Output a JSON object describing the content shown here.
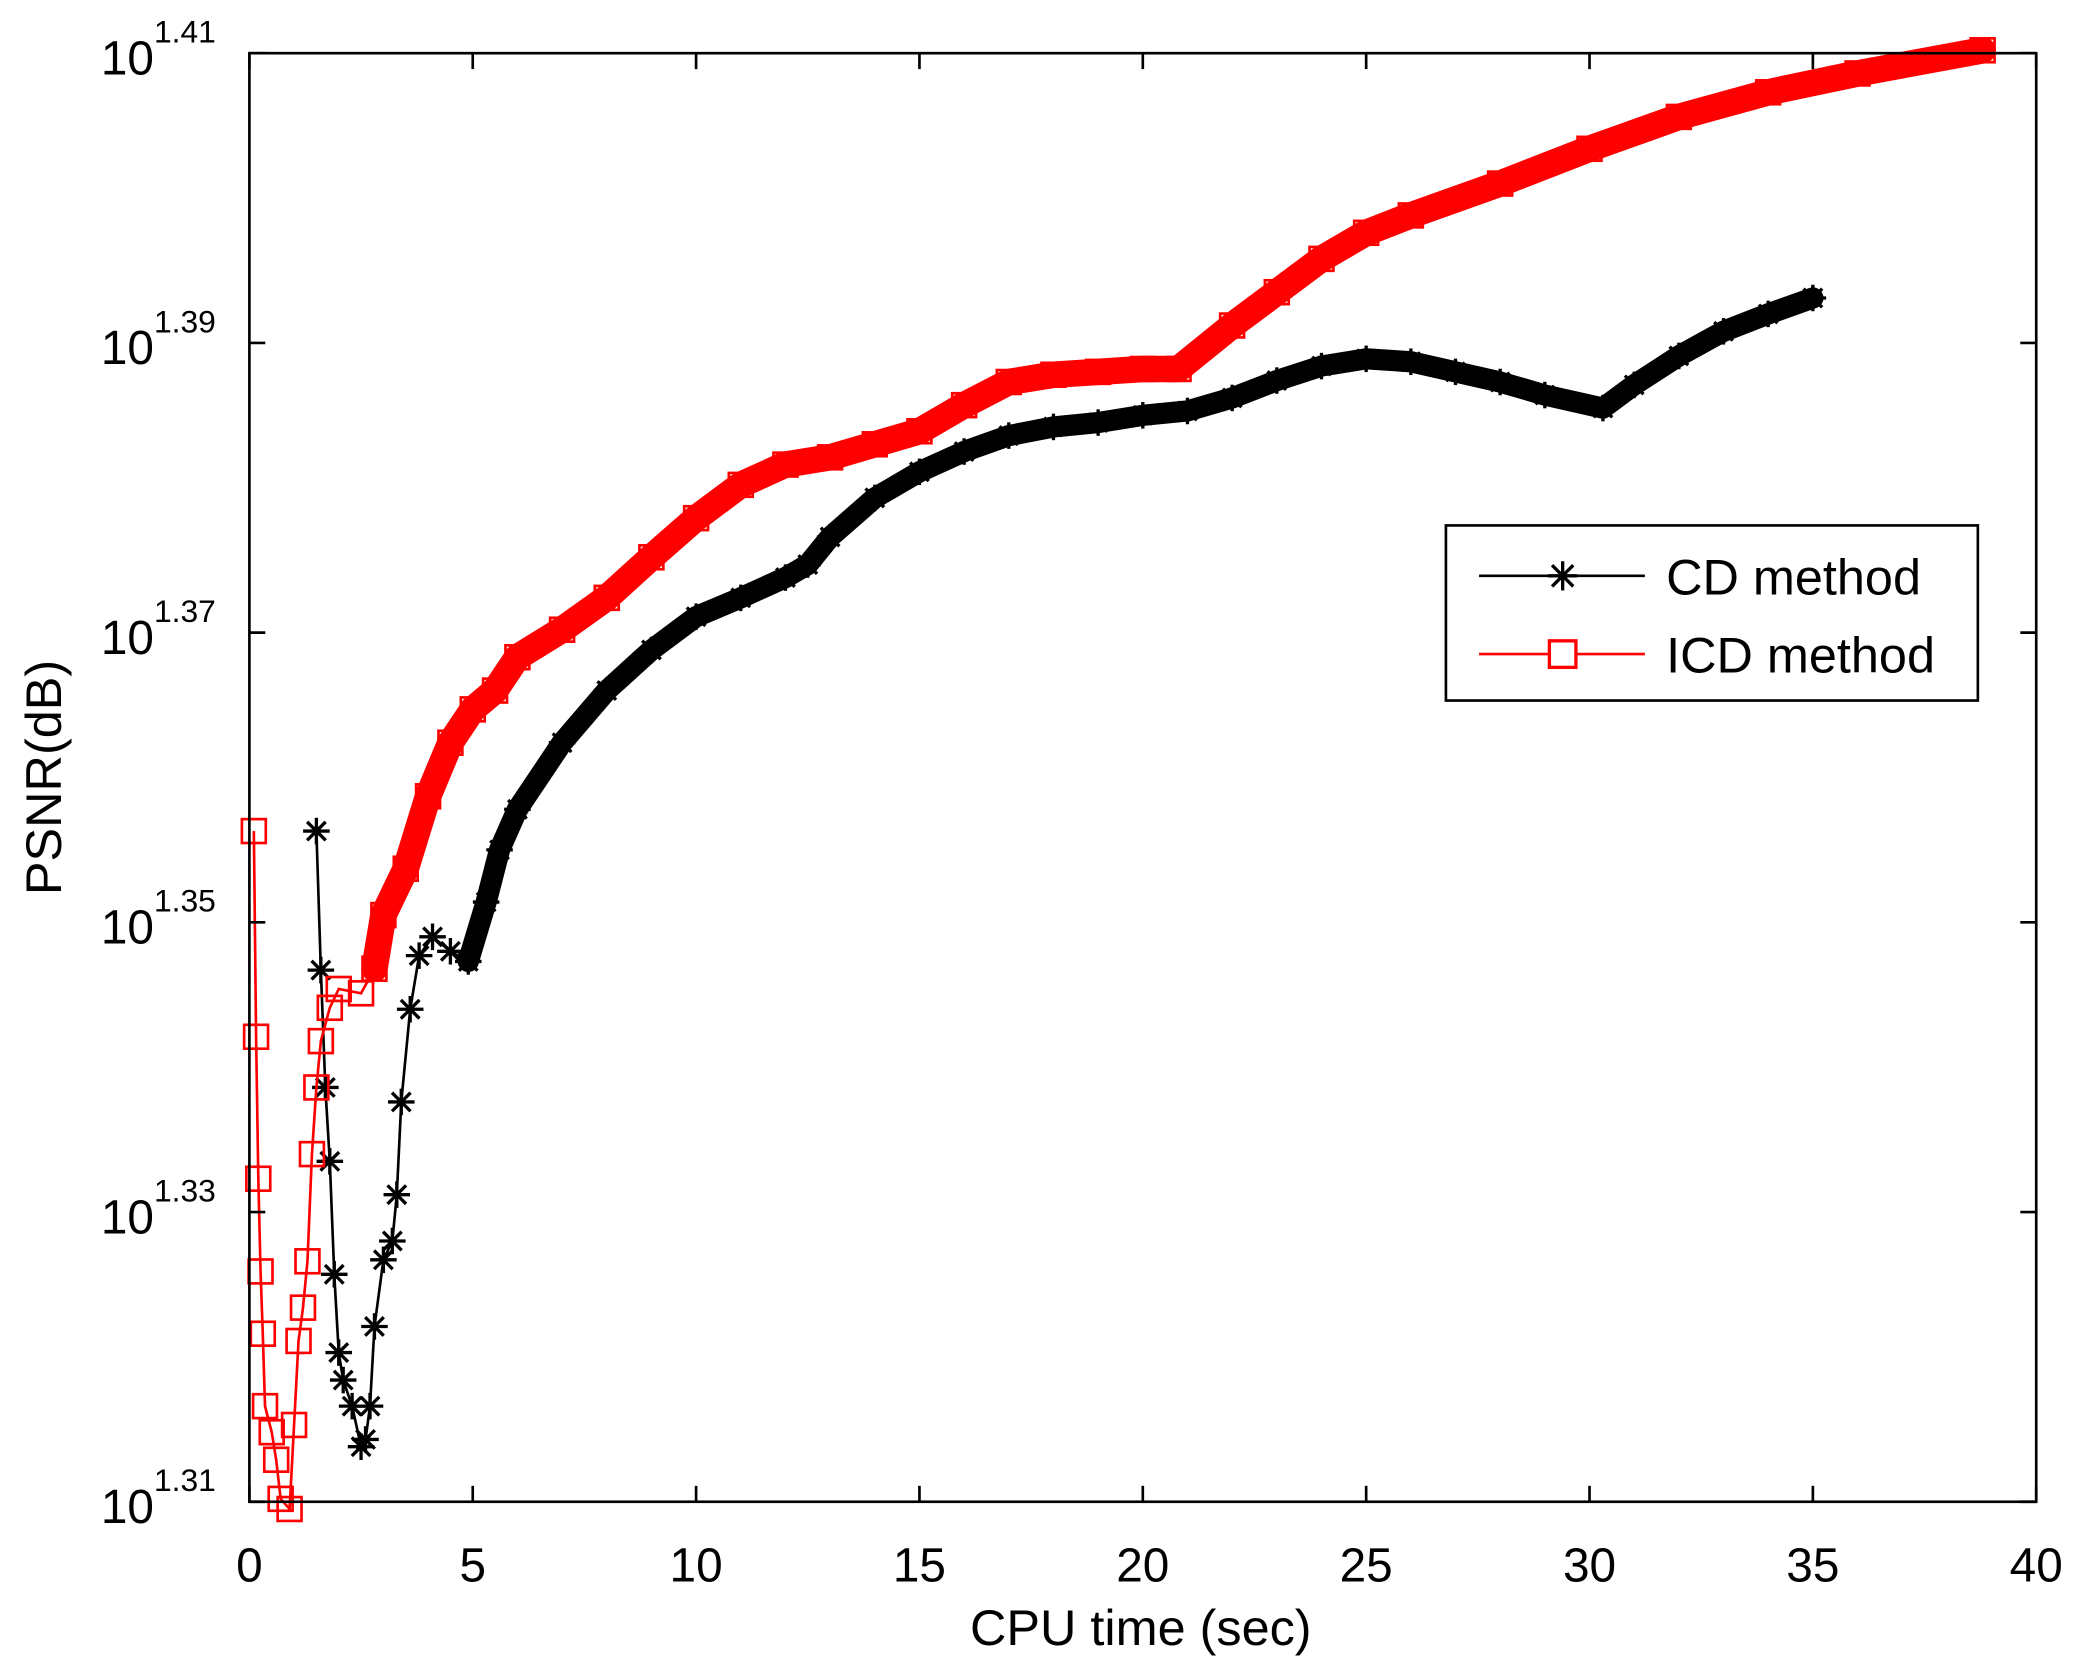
{
  "chart_data": {
    "type": "line",
    "title": "",
    "xlabel": "CPU time (sec)",
    "ylabel": "PSNR(dB)",
    "xlim": [
      0,
      40
    ],
    "ylim_exponent": [
      1.31,
      1.41
    ],
    "yscale": "log",
    "y_value_unit": "log10 of PSNR (exponent of 10)",
    "xticks": [
      0,
      5,
      10,
      15,
      20,
      25,
      30,
      35,
      40
    ],
    "yticks": [
      {
        "base": "10",
        "exp": "1.31",
        "value": 1.31
      },
      {
        "base": "10",
        "exp": "1.33",
        "value": 1.33
      },
      {
        "base": "10",
        "exp": "1.35",
        "value": 1.35
      },
      {
        "base": "10",
        "exp": "1.37",
        "value": 1.37
      },
      {
        "base": "10",
        "exp": "1.39",
        "value": 1.39
      },
      {
        "base": "10",
        "exp": "1.41",
        "value": 1.41
      }
    ],
    "grid": false,
    "legend_position": "right-middle",
    "series": [
      {
        "name": "CD method",
        "color": "#000000",
        "marker": "asterisk",
        "x": [
          1.5,
          1.6,
          1.7,
          1.8,
          1.9,
          2.0,
          2.1,
          2.3,
          2.5,
          2.6,
          2.7,
          2.8,
          3.0,
          3.2,
          3.3,
          3.4,
          3.6,
          3.8,
          4.1,
          4.5,
          4.9,
          5.3,
          5.6,
          6,
          7,
          8,
          9,
          10,
          11,
          12,
          12.5,
          13,
          14,
          15,
          16,
          17,
          18,
          19,
          20,
          21,
          22,
          23,
          24,
          25,
          26,
          27,
          28,
          29,
          30.3,
          31,
          32,
          33,
          34,
          35
        ],
        "y": [
          1.3563,
          1.3467,
          1.3386,
          1.3335,
          1.3257,
          1.3203,
          1.3184,
          1.3166,
          1.3138,
          1.3143,
          1.3166,
          1.3221,
          1.3267,
          1.328,
          1.3312,
          1.3376,
          1.344,
          1.3477,
          1.349,
          1.348,
          1.3473,
          1.3514,
          1.355,
          1.3578,
          1.3624,
          1.366,
          1.3688,
          1.3711,
          1.3724,
          1.3738,
          1.3747,
          1.3766,
          1.3793,
          1.3811,
          1.3825,
          1.3836,
          1.3842,
          1.3845,
          1.385,
          1.3853,
          1.3862,
          1.3874,
          1.3884,
          1.3889,
          1.3887,
          1.388,
          1.3873,
          1.3864,
          1.3855,
          1.3871,
          1.3891,
          1.3908,
          1.392,
          1.3931
        ]
      },
      {
        "name": "ICD method",
        "color": "#ff0000",
        "marker": "square",
        "x": [
          0.1,
          0.15,
          0.2,
          0.25,
          0.3,
          0.35,
          0.5,
          0.6,
          0.7,
          0.9,
          1.0,
          1.1,
          1.2,
          1.3,
          1.4,
          1.5,
          1.6,
          1.8,
          2.0,
          2.5,
          2.8,
          3.0,
          3.5,
          4.0,
          4.5,
          5.0,
          5.5,
          6,
          7,
          8,
          9,
          10,
          11,
          12,
          13,
          14,
          15,
          16,
          17,
          18,
          19,
          20,
          20.8,
          22,
          23,
          24,
          25,
          26,
          28,
          30,
          32,
          34,
          36,
          38.8
        ],
        "y": [
          1.3563,
          1.3421,
          1.3323,
          1.3259,
          1.3216,
          1.3166,
          1.3148,
          1.3129,
          1.3102,
          1.3095,
          1.3153,
          1.3211,
          1.3234,
          1.3266,
          1.334,
          1.3386,
          1.3418,
          1.3441,
          1.3454,
          1.3451,
          1.3468,
          1.3505,
          1.3537,
          1.3587,
          1.3624,
          1.3647,
          1.366,
          1.3683,
          1.3702,
          1.3724,
          1.3752,
          1.3779,
          1.3802,
          1.3816,
          1.3821,
          1.383,
          1.3839,
          1.3857,
          1.3873,
          1.3878,
          1.388,
          1.3882,
          1.3882,
          1.3912,
          1.3935,
          1.3958,
          1.3976,
          1.3988,
          1.401,
          1.4034,
          1.4056,
          1.4073,
          1.4086,
          1.4102
        ]
      }
    ]
  }
}
